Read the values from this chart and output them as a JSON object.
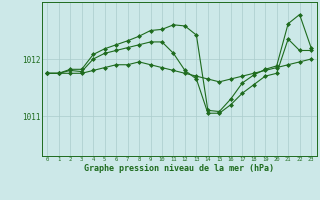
{
  "title": "Graphe pression niveau de la mer (hPa)",
  "bg_color": "#cce8e8",
  "grid_color": "#aacccc",
  "line_color": "#1e6b1e",
  "ylim": [
    1010.3,
    1013.0
  ],
  "yticks": [
    1011,
    1012
  ],
  "xlim": [
    -0.5,
    23.5
  ],
  "xticks": [
    0,
    1,
    2,
    3,
    4,
    5,
    6,
    7,
    8,
    9,
    10,
    11,
    12,
    13,
    14,
    15,
    16,
    17,
    18,
    19,
    20,
    21,
    22,
    23
  ],
  "series1": {
    "x": [
      0,
      1,
      2,
      3,
      4,
      5,
      6,
      7,
      8,
      9,
      10,
      11,
      12,
      13,
      14,
      15,
      16,
      17,
      18,
      19,
      20,
      21,
      22,
      23
    ],
    "y": [
      1011.75,
      1011.75,
      1011.75,
      1011.75,
      1011.8,
      1011.85,
      1011.9,
      1011.9,
      1011.95,
      1011.9,
      1011.85,
      1011.8,
      1011.75,
      1011.7,
      1011.65,
      1011.6,
      1011.65,
      1011.7,
      1011.75,
      1011.8,
      1011.85,
      1011.9,
      1011.95,
      1012.0
    ]
  },
  "series2": {
    "x": [
      0,
      1,
      2,
      3,
      4,
      5,
      6,
      7,
      8,
      9,
      10,
      11,
      12,
      13,
      14,
      15,
      16,
      17,
      18,
      19,
      20,
      21,
      22,
      23
    ],
    "y": [
      1011.75,
      1011.75,
      1011.8,
      1011.78,
      1012.0,
      1012.1,
      1012.15,
      1012.2,
      1012.25,
      1012.3,
      1012.3,
      1012.1,
      1011.8,
      1011.65,
      1011.05,
      1011.05,
      1011.2,
      1011.4,
      1011.55,
      1011.7,
      1011.75,
      1012.35,
      1012.15,
      1012.15
    ]
  },
  "series3": {
    "x": [
      0,
      1,
      2,
      3,
      4,
      5,
      6,
      7,
      8,
      9,
      10,
      11,
      12,
      13,
      14,
      15,
      16,
      17,
      18,
      19,
      20,
      21,
      22,
      23
    ],
    "y": [
      1011.75,
      1011.75,
      1011.82,
      1011.82,
      1012.08,
      1012.18,
      1012.25,
      1012.32,
      1012.4,
      1012.5,
      1012.52,
      1012.6,
      1012.58,
      1012.42,
      1011.1,
      1011.08,
      1011.3,
      1011.58,
      1011.72,
      1011.82,
      1011.88,
      1012.62,
      1012.78,
      1012.2
    ]
  }
}
